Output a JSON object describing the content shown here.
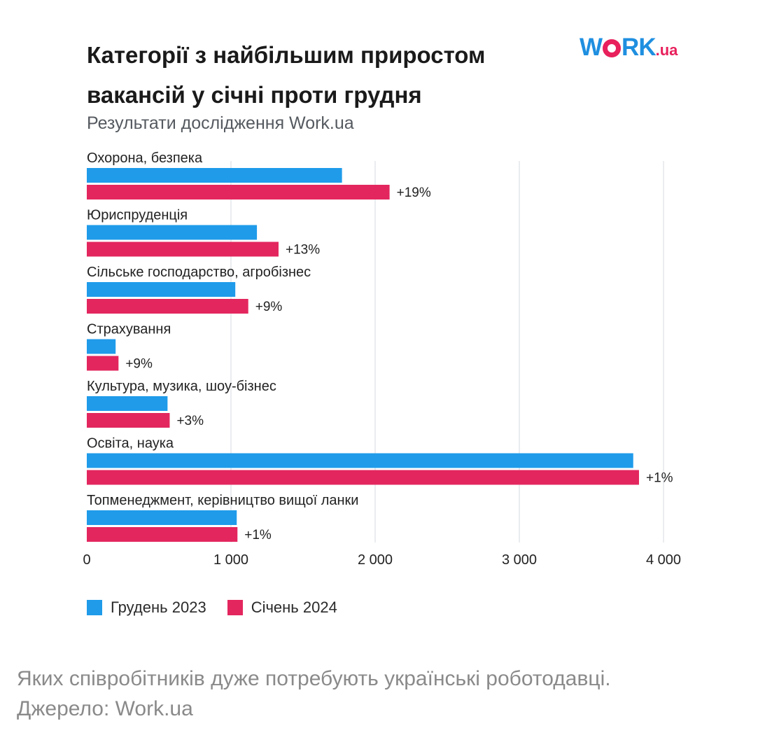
{
  "header": {
    "title": "Категорії з найбільшим приростом вакансій у січні проти грудня",
    "subtitle": "Результати дослідження Work.ua",
    "logo_text": "WORK.ua"
  },
  "caption": {
    "line1": "Яких співробітників дуже потребують українські роботодавці.",
    "line2": "Джерело: Work.ua"
  },
  "chart_data": {
    "type": "bar",
    "orientation": "horizontal",
    "title": "Категорії з найбільшим приростом вакансій у січні проти грудня",
    "subtitle": "Результати дослідження Work.ua",
    "categories": [
      "Охорона, безпека",
      "Юриспруденція",
      "Сільське господарство, агробізнес",
      "Страхування",
      "Культура, музика, шоу-бізнес",
      "Освіта, наука",
      "Топменеджмент, керівництво вищої ланки"
    ],
    "series": [
      {
        "name": "Грудень 2023",
        "color": "#1f9bea",
        "values": [
          1770,
          1180,
          1030,
          200,
          560,
          3790,
          1040
        ]
      },
      {
        "name": "Січень 2024",
        "color": "#e3265e",
        "values": [
          2100,
          1330,
          1120,
          220,
          575,
          3830,
          1045
        ]
      }
    ],
    "data_labels": [
      "+19%",
      "+13%",
      "+9%",
      "+9%",
      "+3%",
      "+1%",
      "+1%"
    ],
    "xlim": [
      0,
      4000
    ],
    "x_ticks": [
      0,
      1000,
      2000,
      3000,
      4000
    ],
    "x_tick_labels": [
      "0",
      "1 000",
      "2 000",
      "3 000",
      "4 000"
    ],
    "grid": "vertical",
    "legend": "bottom-left"
  }
}
